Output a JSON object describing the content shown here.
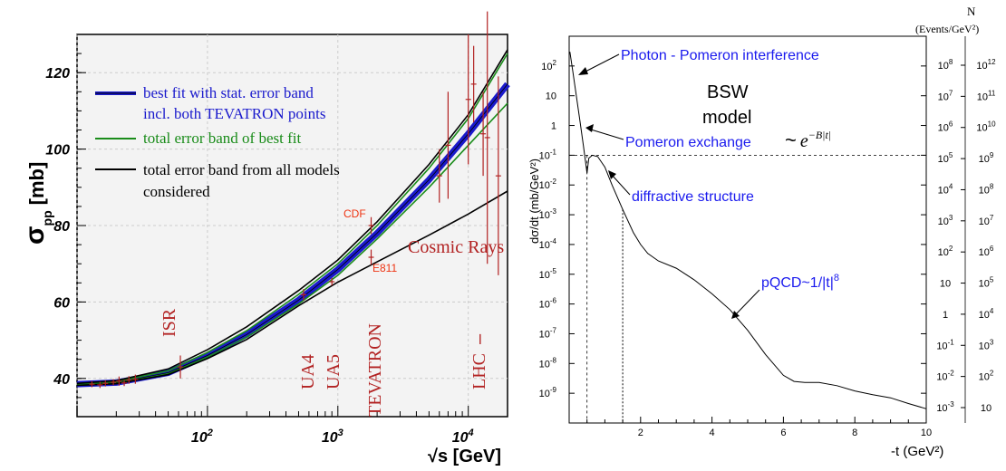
{
  "left": {
    "ylabel": "σ",
    "ylabel_sub": "pp",
    "ylabel_unit": "[mb]",
    "xlabel": "√s [GeV]",
    "legend": [
      {
        "text": "best fit with stat. error band",
        "color": "#1a1acc"
      },
      {
        "text": "incl. both TEVATRON points",
        "color": "#1a1acc"
      },
      {
        "text": "total error band of best fit",
        "color": "#1a8c1a"
      },
      {
        "text": "total error band from all models",
        "color": "#000000"
      },
      {
        "text": "considered",
        "color": "#000000"
      }
    ],
    "annotations": {
      "isr": "ISR",
      "ua4": "UA4",
      "ua5": "UA5",
      "tevatron": "TEVATRON",
      "lhc": "LHC",
      "cdf": "CDF",
      "e811": "E811",
      "cosmic": "Cosmic Rays"
    },
    "colors": {
      "frame_bg": "#f3f3f3",
      "grid": "#cccccc",
      "data": "#b22222",
      "annot": "#b22222"
    }
  },
  "right": {
    "ylabel": "dσ/dt (mb/GeV²)",
    "xlabel": "-t (GeV²)",
    "n_label_1": "N",
    "n_label_2": "(Events/GeV²)",
    "photon_label": "Photon - Pomeron interference",
    "model_label_1": "BSW",
    "model_label_2": "model",
    "pomeron_label": "Pomeron exchange",
    "pomeron_formula_tilde": "~",
    "pomeron_formula_base": "e",
    "pomeron_formula_exp": "−B|t|",
    "diffractive_label": "diffractive structure",
    "pqcd_label_main": "pQCD~1/|t|",
    "pqcd_label_exp": "8",
    "colors": {
      "annot": "#1a1aee"
    }
  },
  "chart_data": [
    {
      "type": "line",
      "title": "",
      "xlabel": "√s [GeV]",
      "ylabel": "σpp [mb]",
      "xscale": "log",
      "xlim": [
        10,
        20000
      ],
      "ylim": [
        30,
        130
      ],
      "x_ticks": [
        {
          "value": 100,
          "label": "10",
          "exp": "2"
        },
        {
          "value": 1000,
          "label": "10",
          "exp": "3"
        },
        {
          "value": 10000,
          "label": "10",
          "exp": "4"
        }
      ],
      "y_ticks": [
        40,
        60,
        80,
        100,
        120
      ],
      "grid": true,
      "legend_position": "top-left",
      "series": [
        {
          "name": "best fit with stat. error band incl. both TEVATRON points",
          "color": "#1a1acc",
          "x": [
            10,
            20,
            50,
            100,
            200,
            500,
            1000,
            2000,
            5000,
            10000,
            20000
          ],
          "y": [
            38.5,
            38.9,
            41.5,
            46,
            51.5,
            60.5,
            68.5,
            78,
            92,
            104,
            117
          ]
        },
        {
          "name": "total error band of best fit (upper)",
          "color": "#1a8c1a",
          "x": [
            10,
            20,
            50,
            100,
            200,
            500,
            1000,
            2000,
            5000,
            10000,
            20000
          ],
          "y": [
            38.6,
            39.2,
            42,
            46.8,
            52.5,
            62,
            70,
            80,
            95,
            108,
            125
          ]
        },
        {
          "name": "total error band of best fit (lower)",
          "color": "#1a8c1a",
          "x": [
            10,
            20,
            50,
            100,
            200,
            500,
            1000,
            2000,
            5000,
            10000,
            20000
          ],
          "y": [
            38.4,
            38.7,
            41.2,
            45.6,
            50.8,
            59.5,
            67,
            76.5,
            90,
            101,
            112
          ]
        },
        {
          "name": "total error band from all models considered (upper)",
          "color": "#000000",
          "x": [
            10,
            20,
            50,
            100,
            200,
            500,
            1000,
            2000,
            5000,
            10000,
            20000
          ],
          "y": [
            38.7,
            39.4,
            42.5,
            47.5,
            53.5,
            63,
            71,
            81,
            96,
            109,
            126
          ]
        },
        {
          "name": "total error band from all models considered (lower)",
          "color": "#000000",
          "x": [
            10,
            20,
            50,
            100,
            200,
            500,
            1000,
            2000,
            5000,
            10000,
            20000
          ],
          "y": [
            38.2,
            38.6,
            41,
            45.2,
            50.2,
            59,
            65.2,
            70.5,
            77.5,
            83,
            89
          ]
        }
      ],
      "data_points": [
        {
          "x": 13,
          "y": 38.5,
          "err": 0.8
        },
        {
          "x": 15,
          "y": 38.3,
          "err": 0.8
        },
        {
          "x": 16.5,
          "y": 38.7,
          "err": 0.8
        },
        {
          "x": 19,
          "y": 39.0,
          "err": 0.8
        },
        {
          "x": 21,
          "y": 39.3,
          "err": 1.2
        },
        {
          "x": 23,
          "y": 38.8,
          "err": 0.8
        },
        {
          "x": 25,
          "y": 39.6,
          "err": 1.0
        },
        {
          "x": 28,
          "y": 39.8,
          "err": 1.2
        },
        {
          "x": 62,
          "y": 43.0,
          "err": 3.0
        },
        {
          "x": 546,
          "y": 61.9,
          "err": 1.5
        },
        {
          "x": 900,
          "y": 65.3,
          "err": 1.0
        },
        {
          "x": 1800,
          "y": 80.0,
          "err": 2.2
        },
        {
          "x": 1800,
          "y": 71.7,
          "err": 2.0
        },
        {
          "x": 6000,
          "y": 93,
          "err": 7
        },
        {
          "x": 7000,
          "y": 101,
          "err": 14
        },
        {
          "x": 10000,
          "y": 113,
          "err": 17
        },
        {
          "x": 11000,
          "y": 117,
          "err": 10
        },
        {
          "x": 13000,
          "y": 104,
          "err": 11
        },
        {
          "x": 14000,
          "y": 103,
          "err": 33
        },
        {
          "x": 17000,
          "y": 93,
          "err": 26
        }
      ]
    },
    {
      "type": "line",
      "title": "",
      "xlabel": "-t (GeV²)",
      "ylabel": "dσ/dt (mb/GeV²)",
      "yscale": "log",
      "xlim": [
        0,
        10
      ],
      "ylim": [
        1e-10,
        1000
      ],
      "x_ticks": [
        2,
        4,
        6,
        8,
        10
      ],
      "y_ticks": [
        {
          "value": 0.001,
          "label": "10",
          "exp": "-3"
        },
        {
          "value": 0.01,
          "label": "10",
          "exp": "-2"
        },
        {
          "value": 0.1,
          "label": "10",
          "exp": "-1"
        },
        {
          "value": 1,
          "label": "1",
          "exp": ""
        },
        {
          "value": 10,
          "label": "10",
          "exp": ""
        },
        {
          "value": 100,
          "label": "10",
          "exp": "2"
        }
      ],
      "y_ticks_minor_labels": [
        {
          "value": 1e-09,
          "label": "10",
          "exp": "-9"
        },
        {
          "value": 1e-08,
          "label": "10",
          "exp": "-8"
        },
        {
          "value": 1e-07,
          "label": "10",
          "exp": "-7"
        },
        {
          "value": 1e-06,
          "label": "10",
          "exp": "-6"
        },
        {
          "value": 1e-05,
          "label": "10",
          "exp": "-5"
        },
        {
          "value": 0.0001,
          "label": "10",
          "exp": "-4"
        },
        {
          "value": 0.001,
          "label": "10",
          "exp": "-3"
        },
        {
          "value": 0.01,
          "label": "10",
          "exp": "-2"
        }
      ],
      "right_axis_1": [
        {
          "label": "10",
          "exp": "-3"
        },
        {
          "label": "10",
          "exp": "-2"
        },
        {
          "label": "10",
          "exp": "-1"
        },
        {
          "label": "1",
          "exp": ""
        },
        {
          "label": "10",
          "exp": ""
        },
        {
          "label": "10",
          "exp": "2"
        },
        {
          "label": "10",
          "exp": "3"
        },
        {
          "label": "10",
          "exp": "4"
        },
        {
          "label": "10",
          "exp": "5"
        },
        {
          "label": "10",
          "exp": "6"
        },
        {
          "label": "10",
          "exp": "7"
        },
        {
          "label": "10",
          "exp": "8"
        }
      ],
      "right_axis_2": [
        {
          "label": "10",
          "exp": ""
        },
        {
          "label": "10",
          "exp": "2"
        },
        {
          "label": "10",
          "exp": "3"
        },
        {
          "label": "10",
          "exp": "4"
        },
        {
          "label": "10",
          "exp": "5"
        },
        {
          "label": "10",
          "exp": "6"
        },
        {
          "label": "10",
          "exp": "7"
        },
        {
          "label": "10",
          "exp": "8"
        },
        {
          "label": "10",
          "exp": "9"
        },
        {
          "label": "10",
          "exp": "10"
        },
        {
          "label": "10",
          "exp": "11"
        },
        {
          "label": "10",
          "exp": "12"
        }
      ],
      "series": [
        {
          "name": "BSW model",
          "color": "#000000",
          "x": [
            0.02,
            0.1,
            0.2,
            0.3,
            0.4,
            0.5,
            0.55,
            0.65,
            0.8,
            1.0,
            1.2,
            1.5,
            1.8,
            2.0,
            2.2,
            2.5,
            3.0,
            3.5,
            4.0,
            4.5,
            5.0,
            5.5,
            6.0,
            6.3,
            6.6,
            7.0,
            7.5,
            8.0,
            8.5,
            9.0,
            9.5,
            10.0
          ],
          "y": [
            300,
            70,
            10,
            1.5,
            0.2,
            0.025,
            0.08,
            0.1,
            0.09,
            0.04,
            0.01,
            0.0015,
            0.00025,
            0.0001,
            5e-05,
            2.8e-05,
            1.6e-05,
            6.5e-06,
            2.2e-06,
            6.5e-07,
            1.3e-07,
            2e-08,
            4e-09,
            2.5e-09,
            2.3e-09,
            2.3e-09,
            1.8e-09,
            1.2e-09,
            9e-10,
            7e-10,
            4.5e-10,
            3e-10
          ]
        }
      ],
      "reference_line_y": 0.1
    }
  ]
}
